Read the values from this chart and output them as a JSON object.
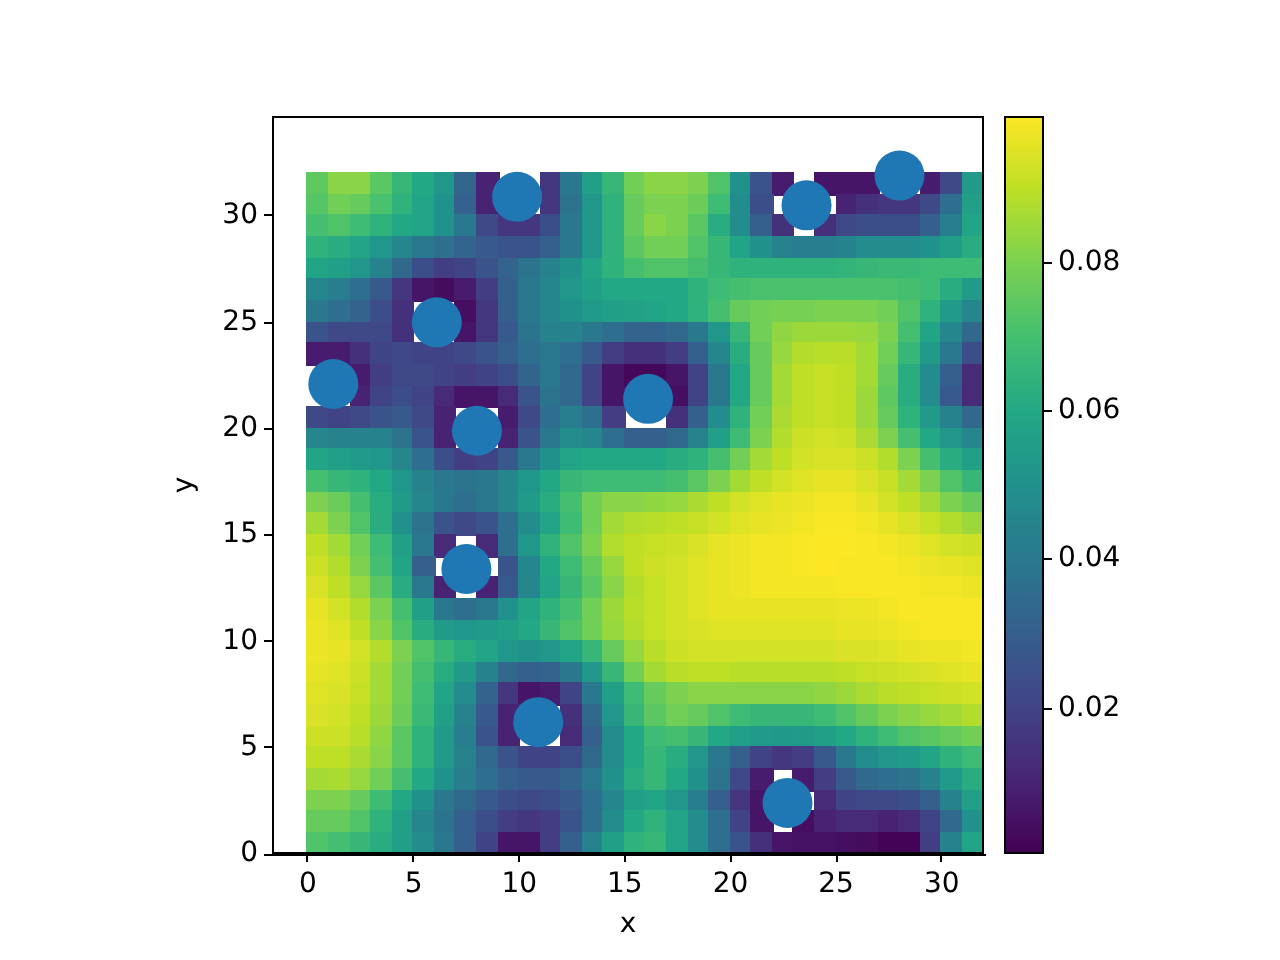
{
  "chart_data": {
    "type": "heatmap",
    "xlabel": "x",
    "ylabel": "y",
    "xlim": [
      -1.7,
      32
    ],
    "ylim": [
      0,
      34.7
    ],
    "xticks": [
      0,
      5,
      10,
      15,
      20,
      25,
      30
    ],
    "yticks": [
      0,
      5,
      10,
      15,
      20,
      25,
      30
    ],
    "clim": [
      0.0003,
      0.0996
    ],
    "cticks": [
      0.02,
      0.04,
      0.06,
      0.08
    ],
    "x": [
      0.5,
      1.5,
      2.5,
      3.5,
      4.5,
      5.5,
      6.5,
      7.5,
      8.5,
      9.5,
      10.5,
      11.5,
      12.5,
      13.5,
      14.5,
      15.5,
      16.5,
      17.5,
      18.5,
      19.5,
      20.5,
      21.5,
      22.5,
      23.5,
      24.5,
      25.5,
      26.5,
      27.5,
      28.5,
      29.5,
      30.5,
      31.5
    ],
    "y": [
      31.5,
      30.5,
      29.5,
      28.5,
      27.5,
      26.5,
      25.5,
      24.5,
      23.5,
      22.5,
      21.5,
      20.5,
      19.5,
      18.5,
      17.5,
      16.5,
      15.5,
      14.5,
      13.5,
      12.5,
      11.5,
      10.5,
      9.5,
      8.5,
      7.5,
      6.5,
      5.5,
      4.5,
      3.5,
      2.5,
      1.5,
      0.5
    ],
    "cells": [
      [
        0.075,
        0.082,
        0.082,
        0.074,
        0.066,
        0.06,
        0.052,
        0.033,
        0.01,
        null,
        null,
        0.016,
        0.04,
        0.056,
        0.066,
        0.078,
        0.082,
        0.082,
        0.08,
        0.072,
        0.05,
        0.026,
        0.008,
        null,
        0.006,
        0.006,
        0.006,
        null,
        null,
        0.008,
        0.022,
        0.054
      ],
      [
        0.073,
        0.078,
        0.076,
        0.071,
        0.064,
        0.058,
        0.05,
        0.031,
        0.01,
        null,
        null,
        0.016,
        0.038,
        0.052,
        0.064,
        0.076,
        0.08,
        0.08,
        0.077,
        0.068,
        0.048,
        0.024,
        null,
        null,
        null,
        0.01,
        0.014,
        0.016,
        0.016,
        0.022,
        0.036,
        0.056
      ],
      [
        0.07,
        0.072,
        0.068,
        0.064,
        0.06,
        0.058,
        0.05,
        0.04,
        0.022,
        0.016,
        0.016,
        0.024,
        0.04,
        0.052,
        0.064,
        0.076,
        0.082,
        0.08,
        0.074,
        0.062,
        0.048,
        0.03,
        0.014,
        null,
        0.014,
        0.022,
        0.024,
        0.024,
        0.024,
        0.03,
        0.042,
        0.058
      ],
      [
        0.064,
        0.062,
        0.058,
        0.052,
        0.046,
        0.04,
        0.036,
        0.032,
        0.028,
        0.026,
        0.026,
        0.03,
        0.04,
        0.052,
        0.064,
        0.074,
        0.078,
        0.078,
        0.072,
        0.066,
        0.058,
        0.05,
        0.044,
        0.042,
        0.042,
        0.044,
        0.048,
        0.048,
        0.048,
        0.05,
        0.055,
        0.062
      ],
      [
        0.058,
        0.056,
        0.052,
        0.044,
        0.034,
        0.024,
        0.018,
        0.02,
        0.026,
        0.032,
        0.038,
        0.044,
        0.05,
        0.058,
        0.064,
        0.07,
        0.072,
        0.072,
        0.07,
        0.066,
        0.064,
        0.064,
        0.064,
        0.064,
        0.064,
        0.065,
        0.066,
        0.067,
        0.067,
        0.068,
        0.068,
        0.068
      ],
      [
        0.045,
        0.042,
        0.036,
        0.028,
        0.016,
        0.006,
        0.003,
        0.008,
        0.018,
        0.03,
        0.04,
        0.046,
        0.052,
        0.056,
        0.06,
        0.06,
        0.06,
        0.06,
        0.064,
        0.068,
        0.07,
        0.071,
        0.071,
        0.071,
        0.071,
        0.071,
        0.071,
        0.071,
        0.07,
        0.068,
        0.062,
        0.054
      ],
      [
        0.04,
        0.036,
        0.032,
        0.024,
        0.014,
        null,
        null,
        0.004,
        0.016,
        0.03,
        0.04,
        0.046,
        0.05,
        0.054,
        0.056,
        0.057,
        0.058,
        0.06,
        0.064,
        0.07,
        0.076,
        0.078,
        0.079,
        0.079,
        0.08,
        0.08,
        0.08,
        0.078,
        0.072,
        0.064,
        0.054,
        0.046
      ],
      [
        0.026,
        0.022,
        0.022,
        0.022,
        0.014,
        null,
        null,
        0.006,
        0.016,
        0.028,
        0.038,
        0.044,
        0.044,
        0.04,
        0.036,
        0.032,
        0.032,
        0.034,
        0.04,
        0.052,
        0.066,
        0.078,
        0.083,
        0.085,
        0.085,
        0.085,
        0.084,
        0.08,
        0.07,
        0.058,
        0.046,
        0.034
      ],
      [
        0.008,
        0.008,
        0.014,
        0.02,
        0.022,
        0.02,
        0.02,
        0.022,
        0.026,
        0.03,
        0.036,
        0.04,
        0.036,
        0.028,
        0.018,
        0.014,
        0.014,
        0.018,
        0.03,
        0.046,
        0.062,
        0.076,
        0.084,
        0.088,
        0.089,
        0.089,
        0.086,
        0.078,
        0.066,
        0.054,
        0.04,
        0.024
      ],
      [
        null,
        null,
        0.008,
        0.018,
        0.022,
        0.022,
        0.02,
        0.018,
        0.02,
        0.024,
        0.032,
        0.04,
        0.034,
        0.02,
        0.006,
        0.002,
        0.002,
        0.006,
        0.02,
        0.04,
        0.06,
        0.076,
        0.086,
        0.09,
        0.091,
        0.09,
        0.086,
        0.076,
        0.062,
        0.048,
        0.03,
        0.012
      ],
      [
        null,
        null,
        0.01,
        0.02,
        0.024,
        0.02,
        0.012,
        0.006,
        0.006,
        0.012,
        0.026,
        0.038,
        0.034,
        0.02,
        0.006,
        null,
        null,
        0.004,
        0.02,
        0.04,
        0.06,
        0.076,
        0.086,
        0.09,
        0.091,
        0.09,
        0.085,
        0.075,
        0.062,
        0.048,
        0.028,
        0.012
      ],
      [
        0.022,
        0.02,
        0.022,
        0.026,
        0.028,
        0.022,
        0.01,
        null,
        null,
        0.008,
        0.022,
        0.036,
        0.042,
        0.036,
        0.018,
        null,
        null,
        0.014,
        0.03,
        0.048,
        0.064,
        0.078,
        0.087,
        0.09,
        0.091,
        0.09,
        0.085,
        0.076,
        0.064,
        0.054,
        0.044,
        0.034
      ],
      [
        0.046,
        0.044,
        0.044,
        0.044,
        0.038,
        0.026,
        0.01,
        null,
        null,
        0.01,
        0.026,
        0.04,
        0.048,
        0.046,
        0.036,
        0.03,
        0.03,
        0.034,
        0.044,
        0.056,
        0.068,
        0.08,
        0.088,
        0.092,
        0.093,
        0.092,
        0.087,
        0.08,
        0.07,
        0.06,
        0.052,
        0.046
      ],
      [
        0.058,
        0.056,
        0.054,
        0.052,
        0.046,
        0.036,
        0.024,
        0.018,
        0.02,
        0.028,
        0.04,
        0.05,
        0.058,
        0.06,
        0.06,
        0.06,
        0.06,
        0.062,
        0.064,
        0.07,
        0.078,
        0.086,
        0.09,
        0.093,
        0.094,
        0.094,
        0.092,
        0.088,
        0.08,
        0.07,
        0.062,
        0.056
      ],
      [
        0.07,
        0.066,
        0.064,
        0.06,
        0.052,
        0.044,
        0.04,
        0.038,
        0.04,
        0.046,
        0.052,
        0.06,
        0.066,
        0.068,
        0.068,
        0.068,
        0.068,
        0.07,
        0.074,
        0.08,
        0.086,
        0.09,
        0.093,
        0.095,
        0.096,
        0.096,
        0.094,
        0.091,
        0.086,
        0.08,
        0.072,
        0.066
      ],
      [
        0.08,
        0.077,
        0.07,
        0.062,
        0.054,
        0.046,
        0.04,
        0.036,
        0.04,
        0.046,
        0.054,
        0.062,
        0.07,
        0.078,
        0.082,
        0.082,
        0.083,
        0.084,
        0.087,
        0.09,
        0.093,
        0.095,
        0.096,
        0.097,
        0.098,
        0.098,
        0.096,
        0.093,
        0.09,
        0.086,
        0.08,
        0.076
      ],
      [
        0.086,
        0.08,
        0.072,
        0.062,
        0.05,
        0.038,
        0.026,
        0.022,
        0.026,
        0.036,
        0.048,
        0.058,
        0.068,
        0.078,
        0.086,
        0.088,
        0.089,
        0.09,
        0.091,
        0.093,
        0.095,
        0.096,
        0.097,
        0.098,
        0.099,
        0.099,
        0.098,
        0.096,
        0.094,
        0.091,
        0.088,
        0.085
      ],
      [
        0.09,
        0.086,
        0.078,
        0.068,
        0.056,
        0.04,
        0.012,
        null,
        0.012,
        0.036,
        0.052,
        0.064,
        0.072,
        0.08,
        0.088,
        0.09,
        0.091,
        0.092,
        0.094,
        0.096,
        0.097,
        0.098,
        0.098,
        0.099,
        0.0995,
        0.0995,
        0.099,
        0.098,
        0.097,
        0.095,
        0.093,
        0.092
      ],
      [
        0.092,
        0.088,
        0.08,
        0.07,
        0.058,
        0.03,
        null,
        null,
        null,
        0.026,
        0.046,
        0.06,
        0.068,
        0.076,
        0.084,
        0.09,
        0.092,
        0.093,
        0.095,
        0.096,
        0.097,
        0.098,
        0.098,
        0.099,
        0.0996,
        0.099,
        0.099,
        0.099,
        0.098,
        0.097,
        0.096,
        0.095
      ],
      [
        0.094,
        0.09,
        0.084,
        0.074,
        0.062,
        0.04,
        0.01,
        null,
        0.01,
        0.028,
        0.046,
        0.058,
        0.066,
        0.074,
        0.082,
        0.088,
        0.091,
        0.093,
        0.095,
        0.096,
        0.097,
        0.098,
        0.098,
        0.098,
        0.098,
        0.099,
        0.099,
        0.099,
        0.099,
        0.098,
        0.098,
        0.097
      ],
      [
        0.096,
        0.093,
        0.088,
        0.08,
        0.07,
        0.056,
        0.04,
        0.036,
        0.04,
        0.05,
        0.058,
        0.064,
        0.07,
        0.078,
        0.085,
        0.089,
        0.091,
        0.093,
        0.095,
        0.096,
        0.096,
        0.096,
        0.096,
        0.096,
        0.096,
        0.097,
        0.097,
        0.098,
        0.099,
        0.099,
        0.099,
        0.099
      ],
      [
        0.097,
        0.095,
        0.09,
        0.082,
        0.072,
        0.062,
        0.054,
        0.052,
        0.054,
        0.056,
        0.06,
        0.066,
        0.072,
        0.078,
        0.084,
        0.088,
        0.091,
        0.093,
        0.094,
        0.095,
        0.095,
        0.095,
        0.095,
        0.095,
        0.095,
        0.096,
        0.096,
        0.097,
        0.098,
        0.099,
        0.099,
        0.099
      ],
      [
        0.097,
        0.096,
        0.093,
        0.088,
        0.08,
        0.072,
        0.066,
        0.062,
        0.058,
        0.052,
        0.05,
        0.052,
        0.058,
        0.066,
        0.076,
        0.084,
        0.089,
        0.092,
        0.093,
        0.093,
        0.093,
        0.093,
        0.093,
        0.093,
        0.093,
        0.094,
        0.094,
        0.095,
        0.096,
        0.097,
        0.097,
        0.098
      ],
      [
        0.096,
        0.095,
        0.092,
        0.086,
        0.078,
        0.07,
        0.062,
        0.054,
        0.044,
        0.034,
        0.03,
        0.032,
        0.04,
        0.052,
        0.066,
        0.078,
        0.086,
        0.089,
        0.09,
        0.09,
        0.089,
        0.089,
        0.089,
        0.089,
        0.089,
        0.09,
        0.091,
        0.092,
        0.093,
        0.094,
        0.095,
        0.096
      ],
      [
        0.095,
        0.094,
        0.091,
        0.086,
        0.078,
        0.068,
        0.058,
        0.048,
        0.032,
        0.016,
        0.006,
        0.008,
        0.02,
        0.04,
        0.056,
        0.068,
        0.076,
        0.08,
        0.082,
        0.082,
        0.082,
        0.082,
        0.082,
        0.082,
        0.083,
        0.085,
        0.087,
        0.089,
        0.09,
        0.091,
        0.092,
        0.093
      ],
      [
        0.094,
        0.093,
        0.09,
        0.085,
        0.077,
        0.067,
        0.056,
        0.044,
        0.028,
        0.01,
        null,
        null,
        0.014,
        0.034,
        0.052,
        0.066,
        0.074,
        0.078,
        0.076,
        0.072,
        0.068,
        0.066,
        0.066,
        0.066,
        0.068,
        0.072,
        0.076,
        0.08,
        0.082,
        0.084,
        0.086,
        0.088
      ],
      [
        0.092,
        0.092,
        0.089,
        0.083,
        0.074,
        0.064,
        0.054,
        0.042,
        0.026,
        0.01,
        null,
        null,
        0.012,
        0.03,
        0.048,
        0.06,
        0.068,
        0.07,
        0.066,
        0.06,
        0.056,
        0.054,
        0.053,
        0.054,
        0.056,
        0.06,
        0.064,
        0.068,
        0.072,
        0.074,
        0.076,
        0.078
      ],
      [
        0.09,
        0.09,
        0.087,
        0.082,
        0.074,
        0.064,
        0.054,
        0.044,
        0.034,
        0.026,
        0.02,
        0.02,
        0.024,
        0.034,
        0.048,
        0.06,
        0.066,
        0.062,
        0.052,
        0.04,
        0.03,
        0.02,
        0.016,
        0.018,
        0.028,
        0.04,
        0.048,
        0.052,
        0.054,
        0.058,
        0.064,
        0.068
      ],
      [
        0.086,
        0.087,
        0.084,
        0.078,
        0.07,
        0.06,
        0.05,
        0.042,
        0.036,
        0.03,
        0.028,
        0.028,
        0.032,
        0.04,
        0.05,
        0.062,
        0.066,
        0.06,
        0.05,
        0.038,
        0.022,
        0.008,
        null,
        0.008,
        0.018,
        0.028,
        0.034,
        0.036,
        0.038,
        0.044,
        0.054,
        0.062
      ],
      [
        0.08,
        0.08,
        0.076,
        0.068,
        0.06,
        0.05,
        0.04,
        0.034,
        0.028,
        0.024,
        0.022,
        0.024,
        0.028,
        0.036,
        0.046,
        0.056,
        0.058,
        0.052,
        0.042,
        0.03,
        0.016,
        0.006,
        null,
        null,
        0.012,
        0.02,
        0.022,
        0.022,
        0.024,
        0.03,
        0.044,
        0.056
      ],
      [
        0.076,
        0.076,
        0.072,
        0.064,
        0.056,
        0.046,
        0.038,
        0.03,
        0.024,
        0.018,
        0.016,
        0.018,
        0.026,
        0.036,
        0.048,
        0.06,
        0.064,
        0.058,
        0.048,
        0.036,
        0.02,
        0.006,
        null,
        0.004,
        0.01,
        0.012,
        0.012,
        0.01,
        0.012,
        0.02,
        0.034,
        0.05
      ],
      [
        0.072,
        0.07,
        0.066,
        0.062,
        0.056,
        0.048,
        0.04,
        0.03,
        0.02,
        0.006,
        0.006,
        0.018,
        0.03,
        0.044,
        0.056,
        0.064,
        0.066,
        0.058,
        0.048,
        0.036,
        0.026,
        0.014,
        0.006,
        0.005,
        0.005,
        0.004,
        0.003,
        0.001,
        0.001,
        0.018,
        0.044,
        0.058
      ]
    ],
    "series": [
      {
        "type": "scatter",
        "color": "#1f77b4",
        "marker": "circle",
        "x": [
          9.9,
          23.6,
          28.0,
          6.1,
          1.2,
          8.0,
          16.1,
          7.5,
          10.9,
          22.7
        ],
        "values": [
          30.9,
          30.5,
          31.9,
          25.0,
          22.1,
          19.9,
          21.4,
          13.4,
          6.2,
          2.4
        ]
      }
    ]
  }
}
